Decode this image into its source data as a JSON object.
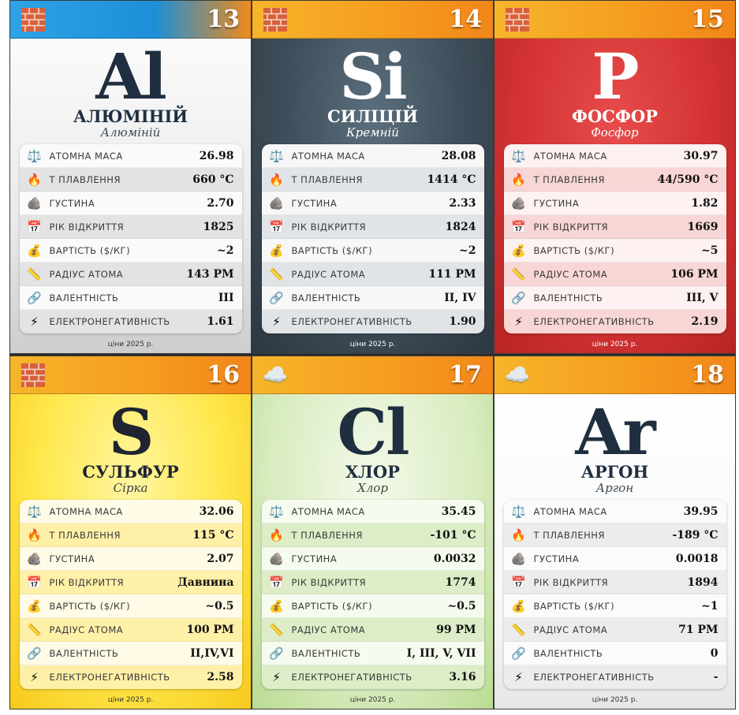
{
  "labels": {
    "mass": "АТОМНА МАСА",
    "melt": "Т ПЛАВЛЕННЯ",
    "density": "ГУСТИНА",
    "year": "РІК ВІДКРИТТЯ",
    "cost": "ВАРТІСТЬ ($/КГ)",
    "radius": "РАДІУС АТОМА",
    "valence": "ВАЛЕНТНІСТЬ",
    "electroneg": "ЕЛЕКТРОНЕГАТИВНІСТЬ"
  },
  "footer": "ціни 2025 р.",
  "icons": {
    "category_solid": "brick-icon",
    "category_gas": "cloud-icon",
    "mass": "scales-icon",
    "melt": "fire-icon",
    "density": "rock-icon",
    "year": "calendar-icon",
    "cost": "money-bag-icon",
    "radius": "ruler-icon",
    "valence": "link-icon",
    "electroneg": "lightning-icon"
  },
  "elements": [
    {
      "number": "13",
      "symbol": "Al",
      "name": "АЛЮМІНІЙ",
      "alt_name": "Алюміній",
      "mass": "26.98",
      "melt": "660 °C",
      "density": "2.70",
      "year": "1825",
      "cost": "~2",
      "radius": "143 PM",
      "valence": "III",
      "electroneg": "1.61",
      "state": "solid"
    },
    {
      "number": "14",
      "symbol": "Si",
      "name": "СИЛІЦІЙ",
      "alt_name": "Кремній",
      "mass": "28.08",
      "melt": "1414 °C",
      "density": "2.33",
      "year": "1824",
      "cost": "~2",
      "radius": "111 PM",
      "valence": "II, IV",
      "electroneg": "1.90",
      "state": "solid"
    },
    {
      "number": "15",
      "symbol": "P",
      "name": "ФОСФОР",
      "alt_name": "Фосфор",
      "mass": "30.97",
      "melt": "44/590 °C",
      "density": "1.82",
      "year": "1669",
      "cost": "~5",
      "radius": "106 PM",
      "valence": "III, V",
      "electroneg": "2.19",
      "state": "solid"
    },
    {
      "number": "16",
      "symbol": "S",
      "name": "СУЛЬФУР",
      "alt_name": "Сірка",
      "mass": "32.06",
      "melt": "115 °C",
      "density": "2.07",
      "year": "Давнина",
      "cost": "~0.5",
      "radius": "100 PM",
      "valence": "II,IV,VI",
      "electroneg": "2.58",
      "state": "solid"
    },
    {
      "number": "17",
      "symbol": "Cl",
      "name": "ХЛОР",
      "alt_name": "Хлор",
      "mass": "35.45",
      "melt": "-101 °C",
      "density": "0.0032",
      "year": "1774",
      "cost": "~0.5",
      "radius": "99 PM",
      "valence": "I, III, V, VII",
      "electroneg": "3.16",
      "state": "gas"
    },
    {
      "number": "18",
      "symbol": "Ar",
      "name": "АРГОН",
      "alt_name": "Аргон",
      "mass": "39.95",
      "melt": "-189 °C",
      "density": "0.0018",
      "year": "1894",
      "cost": "~1",
      "radius": "71 PM",
      "valence": "0",
      "electroneg": "-",
      "state": "gas"
    }
  ]
}
